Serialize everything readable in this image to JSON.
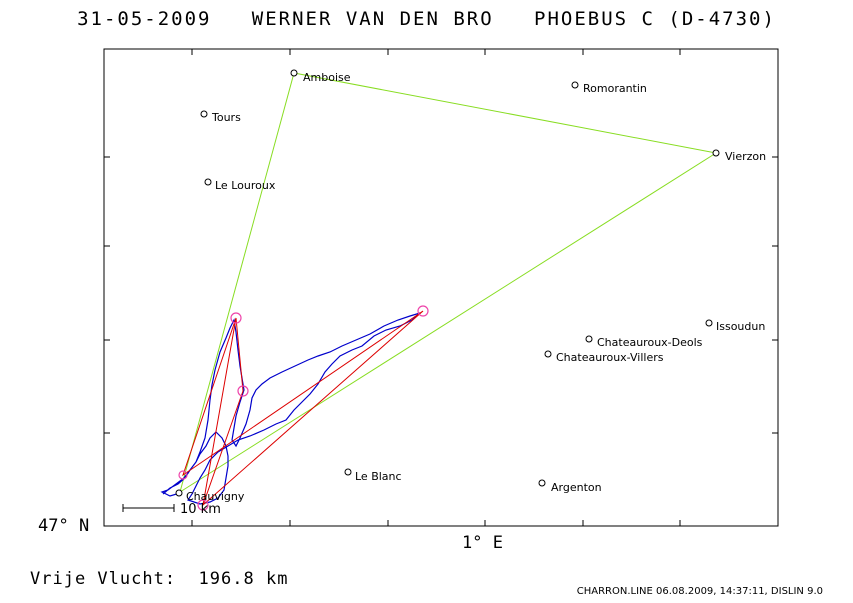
{
  "header": {
    "title": "31-05-2009   WERNER VAN DEN BRO   PHOEBUS C (D-4730)"
  },
  "axes": {
    "lat_label": "47° N",
    "lon_label": "1° E"
  },
  "scale_bar": {
    "label": "10 km"
  },
  "places": [
    {
      "name": "Amboise",
      "lon": 0.98,
      "lat": 47.41
    },
    {
      "name": "Romorantin",
      "lon": 1.74,
      "lat": 47.36
    },
    {
      "name": "Tours",
      "lon": 0.69,
      "lat": 47.39
    },
    {
      "name": "Vierzon",
      "lon": 2.07,
      "lat": 47.22
    },
    {
      "name": "Le Louroux",
      "lon": 0.78,
      "lat": 47.16
    },
    {
      "name": "Issoudun",
      "lon": 2.0,
      "lat": 46.95
    },
    {
      "name": "Chateauroux-Deols",
      "lon": 1.72,
      "lat": 46.86
    },
    {
      "name": "Chateauroux-Villers",
      "lon": 1.67,
      "lat": 46.8
    },
    {
      "name": "Le Blanc",
      "lon": 1.06,
      "lat": 46.63
    },
    {
      "name": "Argenton",
      "lon": 1.52,
      "lat": 46.59
    },
    {
      "name": "Chauvigny",
      "lon": 0.65,
      "lat": 46.56
    }
  ],
  "task_route_names": [
    "Chauvigny",
    "Amboise",
    "Vierzon",
    "Chauvigny"
  ],
  "turnpoints_flown": [
    {
      "lon": 0.74,
      "lat": 46.84
    },
    {
      "lon": 0.77,
      "lat": 46.73
    },
    {
      "lon": 1.24,
      "lat": 46.85
    },
    {
      "lon": 0.61,
      "lat": 46.54
    }
  ],
  "footer": {
    "distance_label": "Vrije Vlucht:",
    "distance_value": "196.8 km",
    "info": "CHARRON.LINE 06.08.2009, 14:37:11, DISLIN 9.0"
  },
  "colors": {
    "task_line": "#88dd22",
    "track": "#0000cc",
    "optimized": "#dd0000",
    "turnpoint_marker": "#ee44aa",
    "place_marker": "#000000",
    "frame": "#000000"
  }
}
